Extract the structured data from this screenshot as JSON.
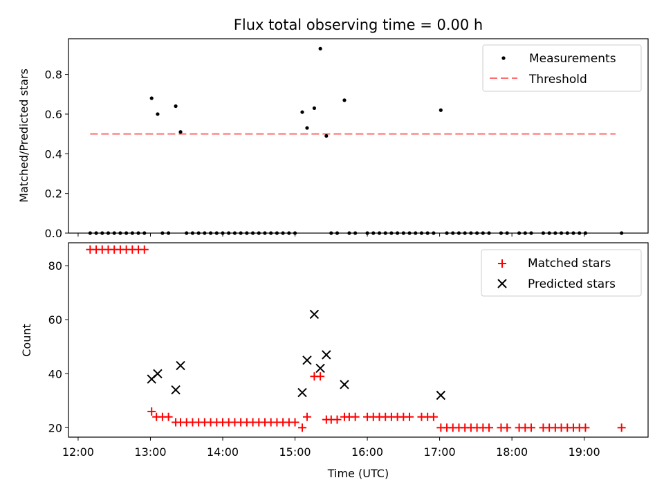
{
  "chart_data": [
    {
      "type": "scatter",
      "title": "Flux total observing time = 0.00 h",
      "xlabel": "",
      "ylabel": "Matched/Predicted stars",
      "ylim": [
        0,
        0.98
      ],
      "yticks": [
        0.0,
        0.2,
        0.4,
        0.6,
        0.8
      ],
      "ytick_labels": [
        "0.0",
        "0.2",
        "0.4",
        "0.6",
        "0.8"
      ],
      "xlim": [
        "11:52",
        "19:53"
      ],
      "legend_position": "top-right",
      "series": [
        {
          "name": "Measurements",
          "marker": "dot",
          "color": "#000000",
          "points": [
            [
              "12:10",
              0
            ],
            [
              "12:15",
              0
            ],
            [
              "12:20",
              0
            ],
            [
              "12:25",
              0
            ],
            [
              "12:30",
              0
            ],
            [
              "12:35",
              0
            ],
            [
              "12:40",
              0
            ],
            [
              "12:45",
              0
            ],
            [
              "12:50",
              0
            ],
            [
              "12:55",
              0
            ],
            [
              "13:01",
              0.68
            ],
            [
              "13:06",
              0.6
            ],
            [
              "13:10",
              0
            ],
            [
              "13:15",
              0
            ],
            [
              "13:21",
              0.64
            ],
            [
              "13:25",
              0.51
            ],
            [
              "13:30",
              0
            ],
            [
              "13:35",
              0
            ],
            [
              "13:40",
              0
            ],
            [
              "13:45",
              0
            ],
            [
              "13:50",
              0
            ],
            [
              "13:55",
              0
            ],
            [
              "14:00",
              0
            ],
            [
              "14:05",
              0
            ],
            [
              "14:10",
              0
            ],
            [
              "14:15",
              0
            ],
            [
              "14:20",
              0
            ],
            [
              "14:25",
              0
            ],
            [
              "14:30",
              0
            ],
            [
              "14:35",
              0
            ],
            [
              "14:40",
              0
            ],
            [
              "14:45",
              0
            ],
            [
              "14:50",
              0
            ],
            [
              "14:55",
              0
            ],
            [
              "15:00",
              0
            ],
            [
              "15:06",
              0.61
            ],
            [
              "15:10",
              0.53
            ],
            [
              "15:16",
              0.63
            ],
            [
              "15:21",
              0.93
            ],
            [
              "15:26",
              0.49
            ],
            [
              "15:30",
              0
            ],
            [
              "15:35",
              0
            ],
            [
              "15:41",
              0.67
            ],
            [
              "15:45",
              0
            ],
            [
              "15:50",
              0
            ],
            [
              "16:00",
              0
            ],
            [
              "16:05",
              0
            ],
            [
              "16:10",
              0
            ],
            [
              "16:15",
              0
            ],
            [
              "16:20",
              0
            ],
            [
              "16:25",
              0
            ],
            [
              "16:30",
              0
            ],
            [
              "16:35",
              0
            ],
            [
              "16:40",
              0
            ],
            [
              "16:45",
              0
            ],
            [
              "16:50",
              0
            ],
            [
              "16:55",
              0
            ],
            [
              "17:01",
              0.62
            ],
            [
              "17:06",
              0
            ],
            [
              "17:11",
              0
            ],
            [
              "17:16",
              0
            ],
            [
              "17:21",
              0
            ],
            [
              "17:26",
              0
            ],
            [
              "17:31",
              0
            ],
            [
              "17:36",
              0
            ],
            [
              "17:41",
              0
            ],
            [
              "17:51",
              0
            ],
            [
              "17:56",
              0
            ],
            [
              "18:06",
              0
            ],
            [
              "18:11",
              0
            ],
            [
              "18:16",
              0
            ],
            [
              "18:26",
              0
            ],
            [
              "18:31",
              0
            ],
            [
              "18:36",
              0
            ],
            [
              "18:41",
              0
            ],
            [
              "18:46",
              0
            ],
            [
              "18:51",
              0
            ],
            [
              "18:56",
              0
            ],
            [
              "19:01",
              0
            ],
            [
              "19:31",
              0
            ]
          ]
        },
        {
          "name": "Threshold",
          "line_style": "dashed",
          "color": "#ff6e6e",
          "x_range": [
            "12:10",
            "19:26"
          ],
          "value": 0.5
        }
      ]
    },
    {
      "type": "scatter",
      "xlabel": "Time (UTC)",
      "ylabel": "Count",
      "ylim": [
        16.5,
        88.5
      ],
      "yticks": [
        20,
        40,
        60,
        80
      ],
      "ytick_labels": [
        "20",
        "40",
        "60",
        "80"
      ],
      "xticks": [
        "12:00",
        "13:00",
        "14:00",
        "15:00",
        "16:00",
        "17:00",
        "18:00",
        "19:00"
      ],
      "xtick_labels": [
        "12:00",
        "13:00",
        "14:00",
        "15:00",
        "16:00",
        "17:00",
        "18:00",
        "19:00"
      ],
      "legend_position": "top-right",
      "series": [
        {
          "name": "Matched stars",
          "marker": "plus",
          "color": "#ff0000",
          "points": [
            [
              "12:10",
              86
            ],
            [
              "12:15",
              86
            ],
            [
              "12:20",
              86
            ],
            [
              "12:25",
              86
            ],
            [
              "12:30",
              86
            ],
            [
              "12:35",
              86
            ],
            [
              "12:40",
              86
            ],
            [
              "12:45",
              86
            ],
            [
              "12:50",
              86
            ],
            [
              "12:55",
              86
            ],
            [
              "13:01",
              26
            ],
            [
              "13:05",
              24
            ],
            [
              "13:10",
              24
            ],
            [
              "13:15",
              24
            ],
            [
              "13:21",
              22
            ],
            [
              "13:25",
              22
            ],
            [
              "13:30",
              22
            ],
            [
              "13:35",
              22
            ],
            [
              "13:40",
              22
            ],
            [
              "13:45",
              22
            ],
            [
              "13:50",
              22
            ],
            [
              "13:55",
              22
            ],
            [
              "14:00",
              22
            ],
            [
              "14:05",
              22
            ],
            [
              "14:10",
              22
            ],
            [
              "14:15",
              22
            ],
            [
              "14:20",
              22
            ],
            [
              "14:25",
              22
            ],
            [
              "14:30",
              22
            ],
            [
              "14:35",
              22
            ],
            [
              "14:40",
              22
            ],
            [
              "14:45",
              22
            ],
            [
              "14:50",
              22
            ],
            [
              "14:55",
              22
            ],
            [
              "15:00",
              22
            ],
            [
              "15:06",
              20
            ],
            [
              "15:10",
              24
            ],
            [
              "15:16",
              39
            ],
            [
              "15:21",
              39
            ],
            [
              "15:26",
              23
            ],
            [
              "15:30",
              23
            ],
            [
              "15:35",
              23
            ],
            [
              "15:41",
              24
            ],
            [
              "15:45",
              24
            ],
            [
              "15:50",
              24
            ],
            [
              "16:00",
              24
            ],
            [
              "16:05",
              24
            ],
            [
              "16:10",
              24
            ],
            [
              "16:15",
              24
            ],
            [
              "16:20",
              24
            ],
            [
              "16:25",
              24
            ],
            [
              "16:30",
              24
            ],
            [
              "16:35",
              24
            ],
            [
              "16:45",
              24
            ],
            [
              "16:50",
              24
            ],
            [
              "16:55",
              24
            ],
            [
              "17:01",
              20
            ],
            [
              "17:06",
              20
            ],
            [
              "17:11",
              20
            ],
            [
              "17:16",
              20
            ],
            [
              "17:21",
              20
            ],
            [
              "17:26",
              20
            ],
            [
              "17:31",
              20
            ],
            [
              "17:36",
              20
            ],
            [
              "17:41",
              20
            ],
            [
              "17:51",
              20
            ],
            [
              "17:56",
              20
            ],
            [
              "18:06",
              20
            ],
            [
              "18:11",
              20
            ],
            [
              "18:16",
              20
            ],
            [
              "18:26",
              20
            ],
            [
              "18:31",
              20
            ],
            [
              "18:36",
              20
            ],
            [
              "18:41",
              20
            ],
            [
              "18:46",
              20
            ],
            [
              "18:51",
              20
            ],
            [
              "18:56",
              20
            ],
            [
              "19:01",
              20
            ],
            [
              "19:31",
              20
            ]
          ]
        },
        {
          "name": "Predicted stars",
          "marker": "x",
          "color": "#000000",
          "points": [
            [
              "13:01",
              38
            ],
            [
              "13:06",
              40
            ],
            [
              "13:21",
              34
            ],
            [
              "13:25",
              43
            ],
            [
              "15:06",
              33
            ],
            [
              "15:10",
              45
            ],
            [
              "15:16",
              62
            ],
            [
              "15:21",
              42
            ],
            [
              "15:26",
              47
            ],
            [
              "15:41",
              36
            ],
            [
              "17:01",
              32
            ]
          ]
        }
      ]
    }
  ]
}
